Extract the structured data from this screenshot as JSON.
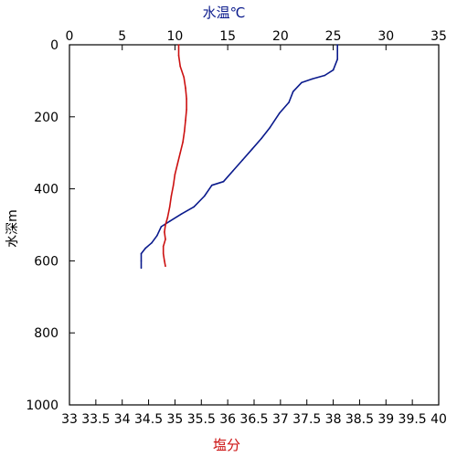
{
  "chart_data": {
    "type": "line",
    "top_axis": {
      "label": "水温℃",
      "range": [
        0,
        35
      ],
      "ticks": [
        "0",
        "5",
        "10",
        "15",
        "20",
        "25",
        "30",
        "35"
      ],
      "color": "#0a1a8c"
    },
    "bottom_axis": {
      "label": "塩分",
      "range": [
        33,
        40
      ],
      "ticks": [
        "33",
        "33.5",
        "34",
        "34.5",
        "35",
        "35.5",
        "36",
        "36.5",
        "37",
        "37.5",
        "38",
        "38.5",
        "39",
        "39.5",
        "40"
      ],
      "color": "#cc1111"
    },
    "y_axis": {
      "label": "水深m",
      "range": [
        0,
        1000
      ],
      "inverted": true,
      "ticks": [
        "0",
        "200",
        "400",
        "600",
        "800",
        "1000"
      ]
    },
    "grid": false,
    "series": [
      {
        "axis": "top",
        "color": "#0a1a8c",
        "points": [
          [
            25.4,
            0
          ],
          [
            25.4,
            40
          ],
          [
            25.0,
            70
          ],
          [
            24.2,
            85
          ],
          [
            23.0,
            95
          ],
          [
            22.0,
            105
          ],
          [
            21.2,
            130
          ],
          [
            20.8,
            160
          ],
          [
            19.9,
            190
          ],
          [
            19.0,
            230
          ],
          [
            18.2,
            260
          ],
          [
            17.3,
            290
          ],
          [
            16.4,
            320
          ],
          [
            15.5,
            350
          ],
          [
            14.6,
            380
          ],
          [
            13.5,
            390
          ],
          [
            12.8,
            420
          ],
          [
            11.8,
            450
          ],
          [
            10.6,
            470
          ],
          [
            9.5,
            490
          ],
          [
            8.7,
            505
          ],
          [
            8.3,
            530
          ],
          [
            7.8,
            550
          ],
          [
            7.2,
            565
          ],
          [
            6.8,
            580
          ],
          [
            6.8,
            600
          ],
          [
            6.8,
            620
          ]
        ]
      },
      {
        "axis": "bottom",
        "color": "#cc1111",
        "points": [
          [
            35.07,
            0
          ],
          [
            35.07,
            30
          ],
          [
            35.1,
            60
          ],
          [
            35.17,
            90
          ],
          [
            35.2,
            120
          ],
          [
            35.22,
            150
          ],
          [
            35.22,
            180
          ],
          [
            35.2,
            210
          ],
          [
            35.18,
            240
          ],
          [
            35.15,
            270
          ],
          [
            35.1,
            300
          ],
          [
            35.05,
            330
          ],
          [
            35.0,
            360
          ],
          [
            34.97,
            390
          ],
          [
            34.93,
            420
          ],
          [
            34.9,
            450
          ],
          [
            34.86,
            480
          ],
          [
            34.82,
            500
          ],
          [
            34.8,
            520
          ],
          [
            34.82,
            540
          ],
          [
            34.78,
            560
          ],
          [
            34.78,
            580
          ],
          [
            34.8,
            600
          ],
          [
            34.82,
            615
          ]
        ]
      }
    ]
  }
}
